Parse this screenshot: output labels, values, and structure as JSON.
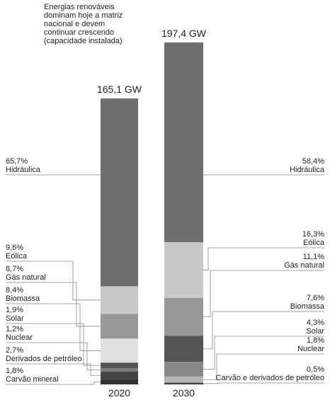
{
  "chart_data": {
    "type": "stacked-bar",
    "title": [
      "Energias renováveis",
      "dominam hoje a matriz",
      "nacional e devem",
      "continuar crescendo",
      "(capacidade instalada)"
    ],
    "bars": [
      {
        "name": "2020",
        "total": 165.1,
        "total_label": "165,1 GW",
        "segments": [
          {
            "name": "Hidráulica",
            "value": 65.7,
            "value_label": "65,7%",
            "color": "#6e6e6e"
          },
          {
            "name": "Eólica",
            "value": 9.6,
            "value_label": "9,6%",
            "color": "#c8c8c8"
          },
          {
            "name": "Gás natural",
            "value": 8.7,
            "value_label": "8,7%",
            "color": "#989898"
          },
          {
            "name": "Biomassa",
            "value": 8.4,
            "value_label": "8,4%",
            "color": "#e0e0e0"
          },
          {
            "name": "Solar",
            "value": 1.9,
            "value_label": "1,9%",
            "color": "#555555"
          },
          {
            "name": "Nuclear",
            "value": 1.2,
            "value_label": "1,2%",
            "color": "#7a7a7a"
          },
          {
            "name": "Derivados de petróleo",
            "value": 2.7,
            "value_label": "2,7%",
            "color": "#444444"
          },
          {
            "name": "Carvão mineral",
            "value": 1.8,
            "value_label": "1,8%",
            "color": "#333333"
          }
        ]
      },
      {
        "name": "2030",
        "total": 197.4,
        "total_label": "197,4 GW",
        "segments": [
          {
            "name": "Hidráulica",
            "value": 58.4,
            "value_label": "58,4%",
            "color": "#6e6e6e"
          },
          {
            "name": "Eólica",
            "value": 16.3,
            "value_label": "16,3%",
            "color": "#c8c8c8"
          },
          {
            "name": "Gás natural",
            "value": 11.1,
            "value_label": "11,1%",
            "color": "#989898"
          },
          {
            "name": "Biomassa",
            "value": 7.6,
            "value_label": "7,6%",
            "color": "#555555"
          },
          {
            "name": "Solar",
            "value": 4.3,
            "value_label": "4,3%",
            "color": "#888888"
          },
          {
            "name": "Nuclear",
            "value": 1.8,
            "value_label": "1,8%",
            "color": "#b5b5b5"
          },
          {
            "name": "Carvão e derivados de petróleo",
            "value": 0.5,
            "value_label": "0,5%",
            "color": "#444444"
          }
        ]
      }
    ]
  }
}
